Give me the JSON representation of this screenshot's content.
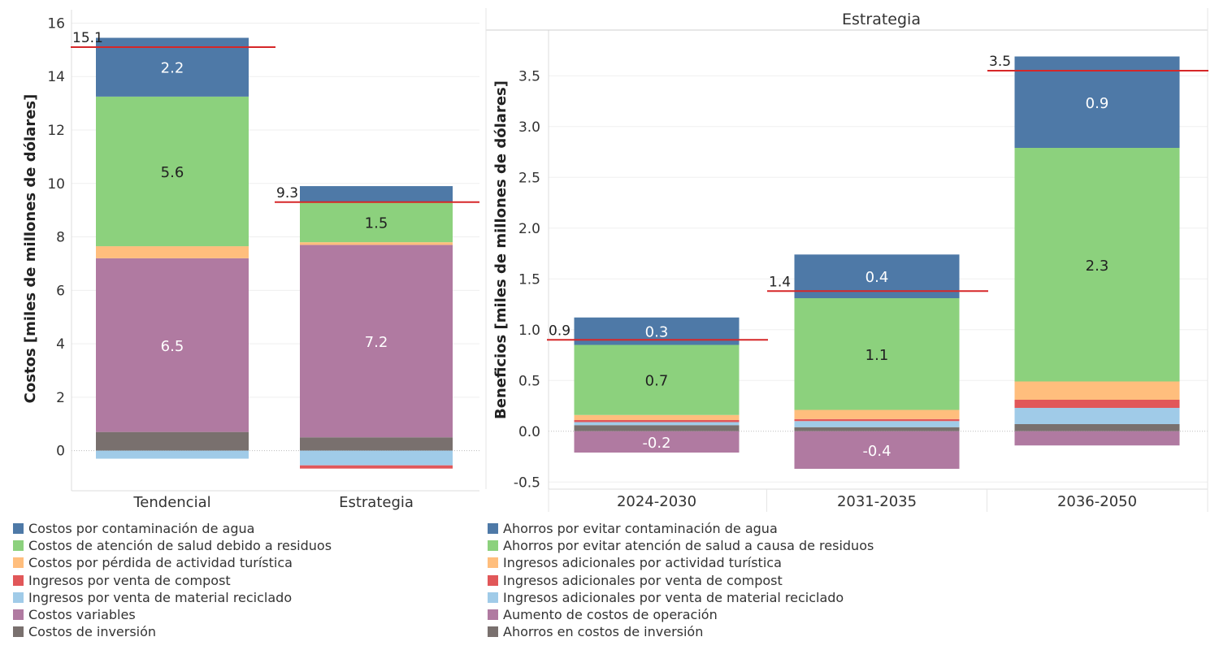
{
  "colors": {
    "blue": "#4e79a7",
    "green": "#8cd17d",
    "orange": "#ffbe7d",
    "red": "#e15759",
    "lightblue": "#a0cbe8",
    "purple": "#b07aa1",
    "gray": "#79706e",
    "total_line": "#d62728"
  },
  "chart_data": [
    {
      "type": "bar",
      "stacked": true,
      "title": "",
      "xlabel": "",
      "ylabel": "Costos [miles de millones de dólares]",
      "ylim": [
        -1.5,
        16.5
      ],
      "yticks": [
        0,
        2,
        4,
        6,
        8,
        10,
        12,
        14,
        16
      ],
      "categories": [
        "Tendencial",
        "Estrategia"
      ],
      "series": [
        {
          "name": "Costos por contaminación de agua",
          "color": "blue",
          "values": [
            2.2,
            0.6
          ]
        },
        {
          "name": "Costos de atención de salud debido a residuos",
          "color": "green",
          "values": [
            5.6,
            1.5
          ]
        },
        {
          "name": "Costos por pérdida de actividad turística",
          "color": "orange",
          "values": [
            0.45,
            0.1
          ]
        },
        {
          "name": "Ingresos por venta de compost",
          "color": "red",
          "values": [
            0,
            -0.12
          ]
        },
        {
          "name": "Ingresos por venta de material reciclado",
          "color": "lightblue",
          "values": [
            -0.3,
            -0.55
          ]
        },
        {
          "name": "Costos variables",
          "color": "purple",
          "values": [
            6.5,
            7.2
          ]
        },
        {
          "name": "Costos de inversión",
          "color": "gray",
          "values": [
            0.7,
            0.5
          ]
        }
      ],
      "totals": [
        15.1,
        9.3
      ],
      "labels": [
        {
          "category": 0,
          "series": 0,
          "text": "2.2"
        },
        {
          "category": 0,
          "series": 1,
          "text": "5.6"
        },
        {
          "category": 0,
          "series": 5,
          "text": "6.5"
        },
        {
          "category": 1,
          "series": 1,
          "text": "1.5"
        },
        {
          "category": 1,
          "series": 5,
          "text": "7.2"
        }
      ],
      "total_labels": [
        "15.1",
        "9.3"
      ]
    },
    {
      "type": "bar",
      "stacked": true,
      "title": "Estrategia",
      "xlabel": "",
      "ylabel": "Beneficios [miles de millones de dólares]",
      "ylim": [
        -0.57,
        3.95
      ],
      "yticks": [
        -0.5,
        0.0,
        0.5,
        1.0,
        1.5,
        2.0,
        2.5,
        3.0,
        3.5
      ],
      "ytick_labels": [
        "-0.5",
        "0.0",
        "0.5",
        "1.0",
        "1.5",
        "2.0",
        "2.5",
        "3.0",
        "3.5"
      ],
      "categories": [
        "2024-2030",
        "2031-2035",
        "2036-2050"
      ],
      "series": [
        {
          "name": "Ahorros por evitar contaminación de agua",
          "color": "blue",
          "values": [
            0.27,
            0.43,
            0.9
          ]
        },
        {
          "name": "Ahorros por evitar atención de salud a causa de residuos",
          "color": "green",
          "values": [
            0.69,
            1.1,
            2.3
          ]
        },
        {
          "name": "Ingresos adicionales por actividad turística",
          "color": "orange",
          "values": [
            0.05,
            0.09,
            0.18
          ]
        },
        {
          "name": "Ingresos adicionales por venta de compost",
          "color": "red",
          "values": [
            0.02,
            0.02,
            0.08
          ]
        },
        {
          "name": "Ingresos adicionales por venta de material reciclado",
          "color": "lightblue",
          "values": [
            0.03,
            0.06,
            0.16
          ]
        },
        {
          "name": "Aumento de costos de operación",
          "color": "purple",
          "values": [
            -0.21,
            -0.37,
            -0.14
          ]
        },
        {
          "name": "Ahorros en costos de inversión",
          "color": "gray",
          "values": [
            0.06,
            0.04,
            0.07
          ]
        }
      ],
      "totals": [
        0.9,
        1.38,
        3.55
      ],
      "labels": [
        {
          "category": 0,
          "series": 0,
          "text": "0.3"
        },
        {
          "category": 0,
          "series": 1,
          "text": "0.7"
        },
        {
          "category": 0,
          "series": 5,
          "text": "-0.2"
        },
        {
          "category": 1,
          "series": 0,
          "text": "0.4"
        },
        {
          "category": 1,
          "series": 1,
          "text": "1.1"
        },
        {
          "category": 1,
          "series": 5,
          "text": "-0.4"
        },
        {
          "category": 2,
          "series": 0,
          "text": "0.9"
        },
        {
          "category": 2,
          "series": 1,
          "text": "2.3"
        }
      ],
      "total_labels": [
        "0.9",
        "1.4",
        "3.5"
      ]
    }
  ],
  "legend": {
    "left": [
      {
        "label": "Costos por contaminación de agua",
        "color": "blue"
      },
      {
        "label": "Costos de atención de salud debido a residuos",
        "color": "green"
      },
      {
        "label": "Costos por pérdida de actividad turística",
        "color": "orange"
      },
      {
        "label": "Ingresos por venta de compost",
        "color": "red"
      },
      {
        "label": "Ingresos por venta de material reciclado",
        "color": "lightblue"
      },
      {
        "label": "Costos variables",
        "color": "purple"
      },
      {
        "label": "Costos de inversión",
        "color": "gray"
      }
    ],
    "right": [
      {
        "label": "Ahorros por evitar contaminación de agua",
        "color": "blue"
      },
      {
        "label": "Ahorros por evitar atención de salud a causa de residuos",
        "color": "green"
      },
      {
        "label": "Ingresos adicionales por actividad turística",
        "color": "orange"
      },
      {
        "label": "Ingresos adicionales por venta de compost",
        "color": "red"
      },
      {
        "label": "Ingresos adicionales por venta de material reciclado",
        "color": "lightblue"
      },
      {
        "label": "Aumento de costos de operación",
        "color": "purple"
      },
      {
        "label": "Ahorros en costos de inversión",
        "color": "gray"
      }
    ]
  }
}
